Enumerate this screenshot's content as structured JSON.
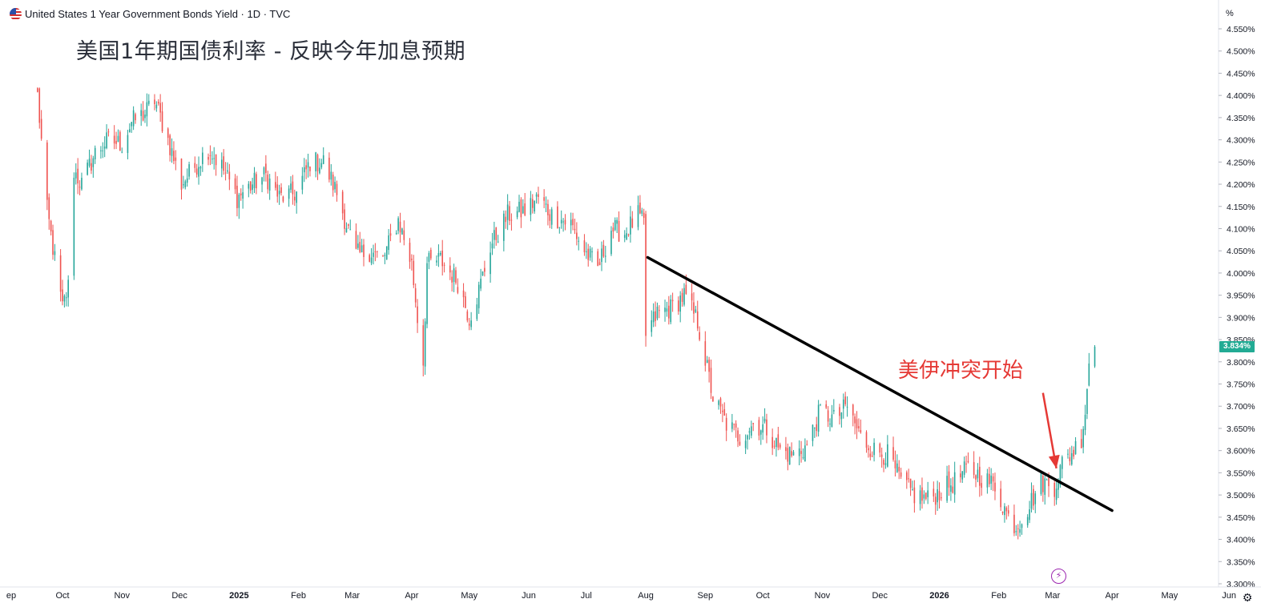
{
  "header": {
    "symbol_title": "United States 1 Year Government Bonds Yield · 1D · TVC",
    "flag_icon": "us-flag-icon"
  },
  "overlay": {
    "main_title": "美国1年期国债利率 - 反映今年加息预期",
    "annotation_text": "美伊冲突开始",
    "annotation_color": "#e53935",
    "trendline_color": "#000000"
  },
  "price_axis": {
    "unit_label": "%",
    "last_price_label": "3.834%",
    "last_price_color": "#22ab94"
  },
  "colors": {
    "up": "#26a69a",
    "down": "#ef5350"
  },
  "chart_data": {
    "type": "candlestick",
    "title": "",
    "xlabel": "",
    "ylabel": "",
    "ylim": [
      3.3,
      4.58
    ],
    "y_ticks": [
      "4.550%",
      "4.500%",
      "4.450%",
      "4.400%",
      "4.350%",
      "4.300%",
      "4.250%",
      "4.200%",
      "4.150%",
      "4.100%",
      "4.050%",
      "4.000%",
      "3.950%",
      "3.900%",
      "3.850%",
      "3.800%",
      "3.750%",
      "3.700%",
      "3.650%",
      "3.600%",
      "3.550%",
      "3.500%",
      "3.450%",
      "3.400%",
      "3.350%",
      "3.300%"
    ],
    "x_ticks": [
      "ep",
      "Oct",
      "Nov",
      "Dec",
      "2025",
      "Feb",
      "Mar",
      "Apr",
      "May",
      "Jun",
      "Jul",
      "Aug",
      "Sep",
      "Oct",
      "Nov",
      "Dec",
      "2026",
      "Feb",
      "Mar",
      "Apr",
      "May",
      "Jun"
    ],
    "x_ticks_bold": [
      "2025",
      "2026"
    ],
    "grid": false,
    "last_value": 3.834,
    "series": [
      {
        "name": "United States 1 Year Government Bonds Yield",
        "anchors": [
          [
            "2024-09-18",
            4.4
          ],
          [
            "2024-09-23",
            4.14
          ],
          [
            "2024-09-27",
            4.03
          ],
          [
            "2024-10-01",
            3.92
          ],
          [
            "2024-10-04",
            3.97
          ],
          [
            "2024-10-07",
            4.23
          ],
          [
            "2024-10-11",
            4.2
          ],
          [
            "2024-10-18",
            4.27
          ],
          [
            "2024-10-25",
            4.3
          ],
          [
            "2024-11-01",
            4.29
          ],
          [
            "2024-11-06",
            4.34
          ],
          [
            "2024-11-13",
            4.36
          ],
          [
            "2024-11-18",
            4.39
          ],
          [
            "2024-11-25",
            4.3
          ],
          [
            "2024-12-02",
            4.2
          ],
          [
            "2024-12-09",
            4.24
          ],
          [
            "2024-12-16",
            4.28
          ],
          [
            "2024-12-23",
            4.24
          ],
          [
            "2024-12-31",
            4.17
          ],
          [
            "2025-01-08",
            4.2
          ],
          [
            "2025-01-15",
            4.22
          ],
          [
            "2025-01-22",
            4.17
          ],
          [
            "2025-01-31",
            4.18
          ],
          [
            "2025-02-07",
            4.25
          ],
          [
            "2025-02-14",
            4.25
          ],
          [
            "2025-02-21",
            4.18
          ],
          [
            "2025-03-03",
            4.04
          ],
          [
            "2025-03-10",
            4.05
          ],
          [
            "2025-03-17",
            4.03
          ],
          [
            "2025-03-25",
            4.12
          ],
          [
            "2025-04-01",
            4.02
          ],
          [
            "2025-04-04",
            3.9
          ],
          [
            "2025-04-07",
            3.8
          ],
          [
            "2025-04-09",
            4.02
          ],
          [
            "2025-04-16",
            4.03
          ],
          [
            "2025-04-25",
            3.98
          ],
          [
            "2025-05-01",
            3.9
          ],
          [
            "2025-05-06",
            3.96
          ],
          [
            "2025-05-12",
            4.06
          ],
          [
            "2025-05-21",
            4.13
          ],
          [
            "2025-05-30",
            4.14
          ],
          [
            "2025-06-06",
            4.17
          ],
          [
            "2025-06-13",
            4.13
          ],
          [
            "2025-06-23",
            4.11
          ],
          [
            "2025-06-30",
            4.05
          ],
          [
            "2025-07-07",
            4.01
          ],
          [
            "2025-07-14",
            4.1
          ],
          [
            "2025-07-21",
            4.09
          ],
          [
            "2025-07-28",
            4.13
          ],
          [
            "2025-07-31",
            4.11
          ],
          [
            "2025-08-01",
            3.86
          ],
          [
            "2025-08-07",
            3.91
          ],
          [
            "2025-08-14",
            3.92
          ],
          [
            "2025-08-21",
            3.95
          ],
          [
            "2025-08-28",
            3.89
          ],
          [
            "2025-09-05",
            3.72
          ],
          [
            "2025-09-12",
            3.66
          ],
          [
            "2025-09-19",
            3.63
          ],
          [
            "2025-09-26",
            3.66
          ],
          [
            "2025-10-03",
            3.65
          ],
          [
            "2025-10-10",
            3.6
          ],
          [
            "2025-10-17",
            3.59
          ],
          [
            "2025-10-24",
            3.61
          ],
          [
            "2025-10-31",
            3.69
          ],
          [
            "2025-11-07",
            3.67
          ],
          [
            "2025-11-14",
            3.7
          ],
          [
            "2025-11-21",
            3.63
          ],
          [
            "2025-11-28",
            3.6
          ],
          [
            "2025-12-05",
            3.59
          ],
          [
            "2025-12-12",
            3.53
          ],
          [
            "2025-12-19",
            3.5
          ],
          [
            "2025-12-26",
            3.49
          ],
          [
            "2026-01-02",
            3.51
          ],
          [
            "2026-01-09",
            3.53
          ],
          [
            "2026-01-16",
            3.56
          ],
          [
            "2026-01-23",
            3.54
          ],
          [
            "2026-01-30",
            3.52
          ],
          [
            "2026-02-06",
            3.45
          ],
          [
            "2026-02-10",
            3.43
          ],
          [
            "2026-02-16",
            3.47
          ],
          [
            "2026-02-23",
            3.53
          ],
          [
            "2026-03-02",
            3.52
          ],
          [
            "2026-03-06",
            3.57
          ],
          [
            "2026-03-12",
            3.6
          ],
          [
            "2026-03-16",
            3.63
          ],
          [
            "2026-03-18",
            3.69
          ],
          [
            "2026-03-20",
            3.8
          ],
          [
            "2026-03-23",
            3.834
          ]
        ]
      }
    ],
    "trendline": {
      "start": [
        "2025-08-02",
        4.035
      ],
      "end": [
        "2026-04-01",
        3.465
      ]
    },
    "annotation_arrow": {
      "from": [
        "2026-02-24",
        3.73
      ],
      "to": [
        "2026-03-03",
        3.56
      ]
    }
  }
}
